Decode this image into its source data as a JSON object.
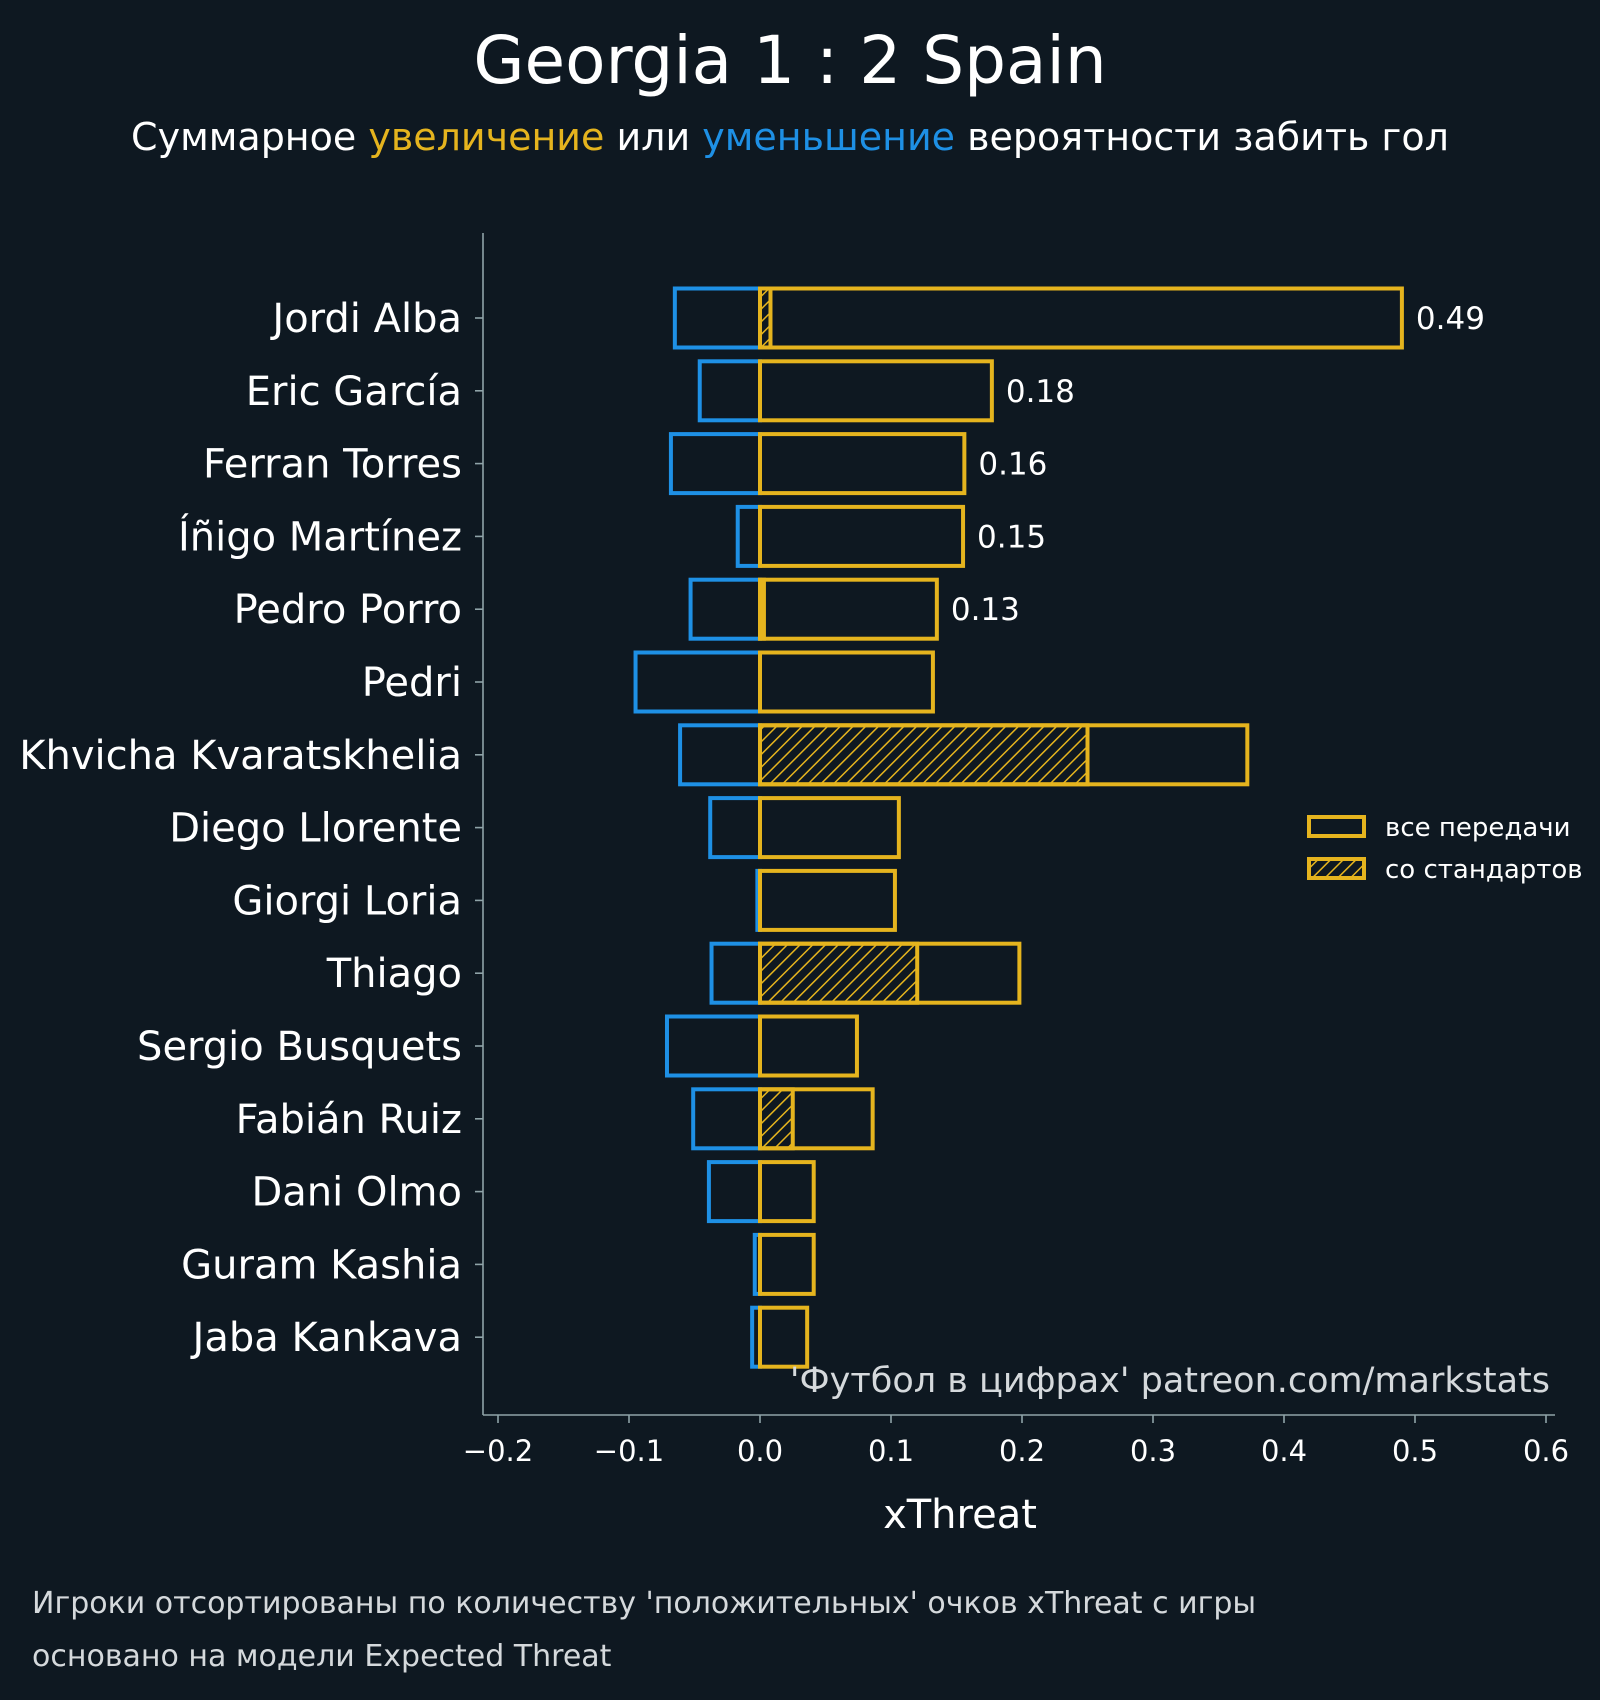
{
  "colors": {
    "background": "#0e1821",
    "positive": "#e5b41e",
    "negative": "#1e90e5",
    "text": "#ffffff",
    "axis": "#8fa3a8",
    "muted": "#d5d9dc"
  },
  "title": "Georgia 1 : 2 Spain",
  "subtitle": {
    "part1": "Суммарное ",
    "increase": "увеличение",
    "part2": " или ",
    "decrease": "уменьшение",
    "part3": " вероятности забить гол"
  },
  "watermark": "'Футбол в цифрах' patreon.com/markstats",
  "footnote": {
    "line1": "Игроки отсортированы по количеству 'положительных' очков xThreat с игры",
    "line2": "основано на модели Expected Threat"
  },
  "legend": {
    "all_passes": "все передачи",
    "set_pieces": "со стандартов"
  },
  "chart_data": {
    "type": "bar",
    "orientation": "horizontal",
    "xlabel": "xThreat",
    "xlim": [
      -0.21,
      0.6
    ],
    "xticks": [
      -0.2,
      -0.1,
      0.0,
      0.1,
      0.2,
      0.3,
      0.4,
      0.5,
      0.6
    ],
    "xtick_labels": [
      "−0.2",
      "−0.1",
      "0.0",
      "0.1",
      "0.2",
      "0.3",
      "0.4",
      "0.5",
      "0.6"
    ],
    "categories": [
      "Jordi Alba",
      "Eric García",
      "Ferran Torres",
      "Íñigo Martínez",
      "Pedro Porro",
      "Pedri",
      "Khvicha Kvaratskhelia",
      "Diego Llorente",
      "Giorgi Loria",
      "Thiago",
      "Sergio Busquets",
      "Fabián Ruiz",
      "Dani Olmo",
      "Guram Kashia",
      "Jaba Kankava"
    ],
    "series": [
      {
        "name": "все передачи (+)",
        "values": [
          0.49,
          0.177,
          0.156,
          0.155,
          0.135,
          0.132,
          0.372,
          0.106,
          0.103,
          0.198,
          0.074,
          0.086,
          0.041,
          0.041,
          0.036
        ]
      },
      {
        "name": "со стандартов (+)",
        "values": [
          0.008,
          0,
          0,
          0,
          0.003,
          0,
          0.25,
          0,
          0,
          0.12,
          0,
          0.025,
          0,
          0,
          0
        ]
      },
      {
        "name": "все передачи (−)",
        "values": [
          -0.065,
          -0.046,
          -0.068,
          -0.017,
          -0.053,
          -0.095,
          -0.061,
          -0.038,
          -0.002,
          -0.037,
          -0.071,
          -0.051,
          -0.039,
          -0.004,
          -0.006
        ]
      }
    ],
    "value_labels": [
      "0.49",
      "0.18",
      "0.16",
      "0.15",
      "0.13",
      "",
      "",
      "",
      "",
      "",
      "",
      "",
      "",
      "",
      ""
    ]
  }
}
